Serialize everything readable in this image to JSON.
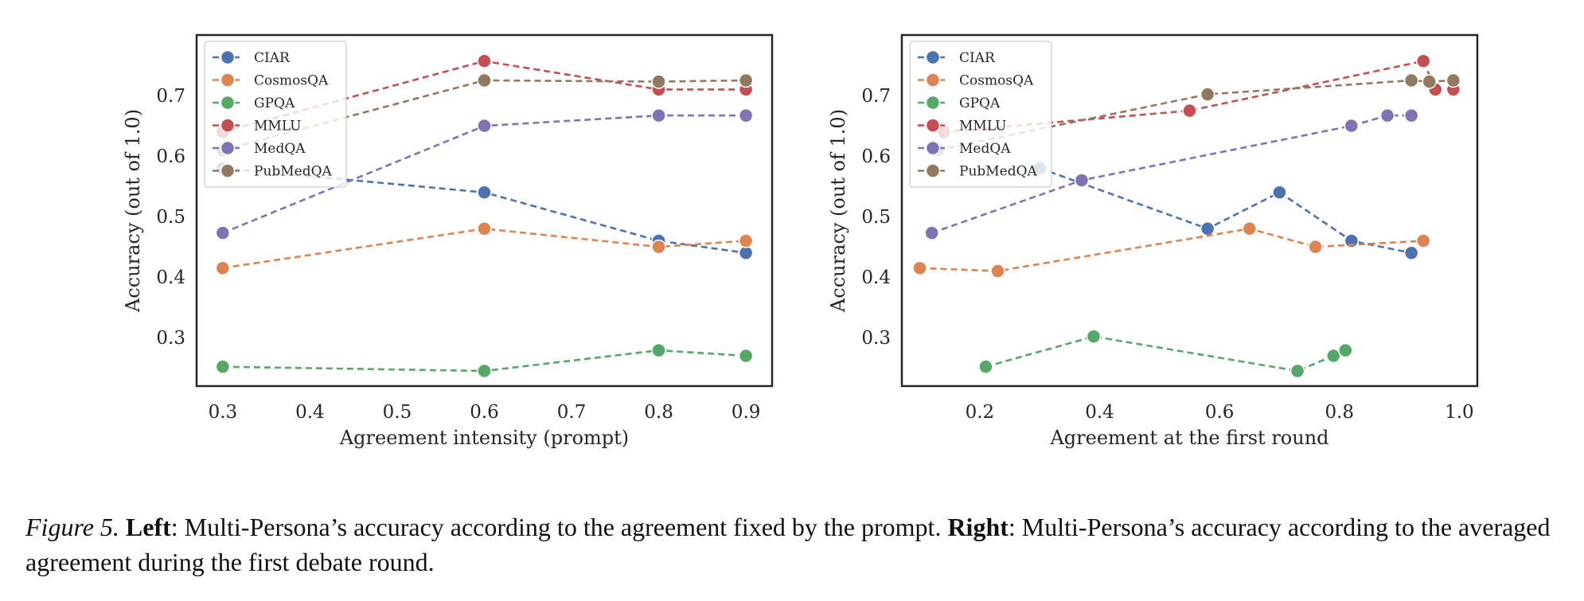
{
  "chart_data": [
    {
      "type": "line",
      "xlabel": "Agreement intensity (prompt)",
      "ylabel": "Accuracy (out of 1.0)",
      "xlim": [
        0.27,
        0.93
      ],
      "ylim": [
        0.22,
        0.8
      ],
      "xticks": [
        0.3,
        0.4,
        0.5,
        0.6,
        0.7,
        0.8,
        0.9
      ],
      "yticks": [
        0.3,
        0.4,
        0.5,
        0.6,
        0.7
      ],
      "grid": false,
      "legend": "top-left",
      "series": [
        {
          "name": "CIAR",
          "color": "#4c72b0",
          "x": [
            0.3,
            0.6,
            0.8,
            0.9
          ],
          "y": [
            0.58,
            0.54,
            0.46,
            0.44
          ]
        },
        {
          "name": "CosmosQA",
          "color": "#dd8452",
          "x": [
            0.3,
            0.6,
            0.8,
            0.9
          ],
          "y": [
            0.415,
            0.48,
            0.45,
            0.46
          ]
        },
        {
          "name": "GPQA",
          "color": "#55a868",
          "x": [
            0.3,
            0.6,
            0.8,
            0.9
          ],
          "y": [
            0.252,
            0.245,
            0.279,
            0.27
          ]
        },
        {
          "name": "MMLU",
          "color": "#c44e52",
          "x": [
            0.3,
            0.6,
            0.8,
            0.9
          ],
          "y": [
            0.64,
            0.757,
            0.71,
            0.71
          ]
        },
        {
          "name": "MedQA",
          "color": "#8172b3",
          "x": [
            0.3,
            0.6,
            0.8,
            0.9
          ],
          "y": [
            0.473,
            0.65,
            0.667,
            0.667
          ]
        },
        {
          "name": "PubMedQA",
          "color": "#937860",
          "x": [
            0.3,
            0.6,
            0.8,
            0.9
          ],
          "y": [
            0.61,
            0.725,
            0.723,
            0.725
          ]
        }
      ]
    },
    {
      "type": "line",
      "xlabel": "Agreement at the first round",
      "ylabel": "Accuracy (out of 1.0)",
      "xlim": [
        0.07,
        1.03
      ],
      "ylim": [
        0.22,
        0.8
      ],
      "xticks": [
        0.2,
        0.4,
        0.6,
        0.8,
        1.0
      ],
      "yticks": [
        0.3,
        0.4,
        0.5,
        0.6,
        0.7
      ],
      "grid": false,
      "legend": "top-left",
      "series": [
        {
          "name": "CIAR",
          "color": "#4c72b0",
          "x": [
            0.3,
            0.58,
            0.7,
            0.82,
            0.92
          ],
          "y": [
            0.58,
            0.48,
            0.54,
            0.46,
            0.44
          ]
        },
        {
          "name": "CosmosQA",
          "color": "#dd8452",
          "x": [
            0.1,
            0.23,
            0.65,
            0.76,
            0.94
          ],
          "y": [
            0.415,
            0.41,
            0.48,
            0.45,
            0.46
          ]
        },
        {
          "name": "GPQA",
          "color": "#55a868",
          "x": [
            0.21,
            0.39,
            0.73,
            0.79,
            0.81
          ],
          "y": [
            0.252,
            0.302,
            0.245,
            0.27,
            0.279
          ]
        },
        {
          "name": "MMLU",
          "color": "#c44e52",
          "x": [
            0.14,
            0.55,
            0.94,
            0.96,
            0.99
          ],
          "y": [
            0.64,
            0.675,
            0.757,
            0.71,
            0.71
          ]
        },
        {
          "name": "MedQA",
          "color": "#8172b3",
          "x": [
            0.12,
            0.37,
            0.82,
            0.88,
            0.92
          ],
          "y": [
            0.473,
            0.56,
            0.65,
            0.667,
            0.667
          ]
        },
        {
          "name": "PubMedQA",
          "color": "#937860",
          "x": [
            0.13,
            0.58,
            0.92,
            0.95,
            0.99
          ],
          "y": [
            0.61,
            0.702,
            0.725,
            0.723,
            0.725
          ]
        }
      ]
    }
  ],
  "caption": {
    "figure_label": "Figure 5.",
    "left_label": "Left",
    "left_text": ": Multi-Persona’s accuracy according to the agreement fixed by the prompt.",
    "right_label": "Right",
    "right_text": ": Multi-Persona’s accuracy according to the averaged agreement during the first debate round."
  }
}
